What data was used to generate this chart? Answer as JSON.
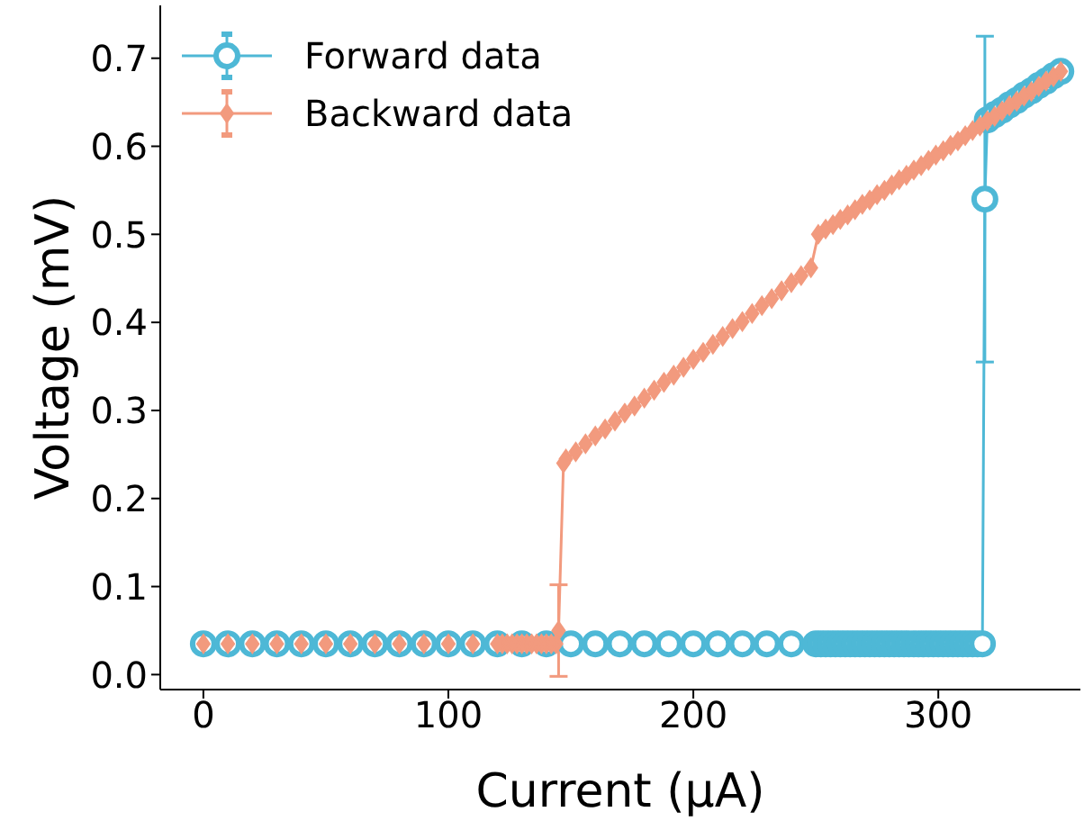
{
  "chart_data": {
    "type": "line",
    "xlabel": "Current (μA)",
    "ylabel": "Voltage (mV)",
    "xlim": [
      -17.6,
      358
    ],
    "ylim": [
      -0.017,
      0.76
    ],
    "xticks": [
      0,
      100,
      200,
      300
    ],
    "yticks": [
      {
        "value": 0,
        "label": "0.0"
      },
      0.1,
      0.2,
      0.3,
      0.4,
      0.5,
      0.6,
      0.7
    ],
    "grid": false,
    "legend": "top left",
    "line_style": "solid",
    "series": [
      {
        "name": "Forward data",
        "color": "#4eb8d6",
        "marker": "circle",
        "x": [
          0,
          10,
          20,
          30,
          40,
          50,
          60,
          70,
          80,
          90,
          100,
          110,
          120,
          130,
          140,
          150,
          160,
          170,
          180,
          190,
          200,
          210,
          220,
          230,
          240,
          250,
          252,
          254,
          256,
          258,
          260,
          262,
          264,
          266,
          268,
          270,
          272,
          274,
          276,
          278,
          280,
          282,
          284,
          286,
          288,
          290,
          292,
          294,
          296,
          298,
          300,
          302,
          304,
          306,
          308,
          310,
          312,
          314,
          316,
          318,
          319,
          320,
          323,
          326,
          329,
          332,
          335,
          338,
          341,
          344,
          347,
          350
        ],
        "values": [
          0.035,
          0.035,
          0.035,
          0.035,
          0.035,
          0.035,
          0.035,
          0.035,
          0.035,
          0.035,
          0.035,
          0.035,
          0.035,
          0.035,
          0.035,
          0.035,
          0.035,
          0.035,
          0.035,
          0.035,
          0.035,
          0.035,
          0.035,
          0.035,
          0.035,
          0.035,
          0.035,
          0.035,
          0.035,
          0.035,
          0.035,
          0.035,
          0.035,
          0.035,
          0.035,
          0.035,
          0.035,
          0.035,
          0.035,
          0.035,
          0.035,
          0.035,
          0.035,
          0.035,
          0.035,
          0.035,
          0.035,
          0.035,
          0.035,
          0.035,
          0.035,
          0.035,
          0.035,
          0.035,
          0.035,
          0.035,
          0.035,
          0.035,
          0.035,
          0.035,
          0.54,
          0.63,
          0.636,
          0.641,
          0.647,
          0.652,
          0.658,
          0.663,
          0.669,
          0.674,
          0.68,
          0.685
        ],
        "errors": [
          null,
          null,
          null,
          null,
          null,
          null,
          null,
          null,
          null,
          null,
          null,
          null,
          null,
          null,
          null,
          null,
          null,
          null,
          null,
          null,
          null,
          null,
          null,
          null,
          null,
          null,
          null,
          null,
          null,
          null,
          null,
          null,
          null,
          null,
          null,
          null,
          null,
          null,
          null,
          null,
          null,
          null,
          null,
          null,
          null,
          null,
          null,
          null,
          null,
          null,
          null,
          null,
          null,
          null,
          null,
          null,
          null,
          null,
          null,
          null,
          0.185,
          null,
          null,
          null,
          null,
          null,
          null,
          null,
          null,
          null,
          null,
          null
        ]
      },
      {
        "name": "Backward data",
        "color": "#f29a7e",
        "marker": "diamond",
        "x": [
          350,
          347,
          344,
          341,
          338,
          335,
          332,
          329,
          326,
          323,
          320,
          317,
          314,
          311,
          308,
          305,
          302,
          299,
          296,
          293,
          290,
          287,
          284,
          281,
          278,
          275,
          272,
          269,
          266,
          263,
          260,
          257,
          254,
          251,
          248,
          244,
          240,
          236,
          232,
          228,
          224,
          220,
          216,
          212,
          208,
          204,
          200,
          196,
          192,
          188,
          184,
          180,
          176,
          172,
          168,
          164,
          160,
          156,
          152,
          148,
          147,
          145,
          144,
          142,
          140,
          138,
          136,
          134,
          132,
          130,
          128,
          126,
          124,
          122,
          120,
          110,
          100,
          90,
          80,
          70,
          60,
          50,
          40,
          30,
          20,
          10,
          0
        ],
        "values": [
          0.685,
          0.679,
          0.674,
          0.668,
          0.662,
          0.657,
          0.651,
          0.646,
          0.64,
          0.634,
          0.629,
          0.623,
          0.618,
          0.612,
          0.606,
          0.601,
          0.595,
          0.59,
          0.584,
          0.578,
          0.573,
          0.567,
          0.562,
          0.556,
          0.55,
          0.545,
          0.539,
          0.534,
          0.528,
          0.522,
          0.517,
          0.511,
          0.506,
          0.5,
          0.462,
          0.453,
          0.445,
          0.436,
          0.427,
          0.419,
          0.41,
          0.401,
          0.393,
          0.384,
          0.375,
          0.366,
          0.358,
          0.349,
          0.34,
          0.332,
          0.323,
          0.314,
          0.305,
          0.297,
          0.288,
          0.279,
          0.271,
          0.262,
          0.253,
          0.245,
          0.24,
          0.05,
          0.035,
          0.035,
          0.035,
          0.035,
          0.035,
          0.035,
          0.035,
          0.035,
          0.035,
          0.035,
          0.035,
          0.035,
          0.035,
          0.035,
          0.035,
          0.035,
          0.035,
          0.035,
          0.035,
          0.035,
          0.035,
          0.035,
          0.035,
          0.035,
          0.035
        ],
        "errors": [
          null,
          null,
          null,
          null,
          null,
          null,
          null,
          null,
          null,
          null,
          null,
          null,
          null,
          null,
          null,
          null,
          null,
          null,
          null,
          null,
          null,
          null,
          null,
          null,
          null,
          null,
          null,
          null,
          null,
          null,
          null,
          null,
          null,
          null,
          null,
          null,
          null,
          null,
          null,
          null,
          null,
          null,
          null,
          null,
          null,
          null,
          null,
          null,
          null,
          null,
          null,
          null,
          null,
          null,
          null,
          null,
          null,
          null,
          null,
          null,
          null,
          0.052,
          null,
          null,
          null,
          null,
          null,
          null,
          null,
          null,
          null,
          null,
          null,
          null,
          null,
          null,
          null,
          null,
          null,
          null,
          null,
          null,
          null,
          null,
          null,
          null,
          null
        ]
      }
    ]
  }
}
